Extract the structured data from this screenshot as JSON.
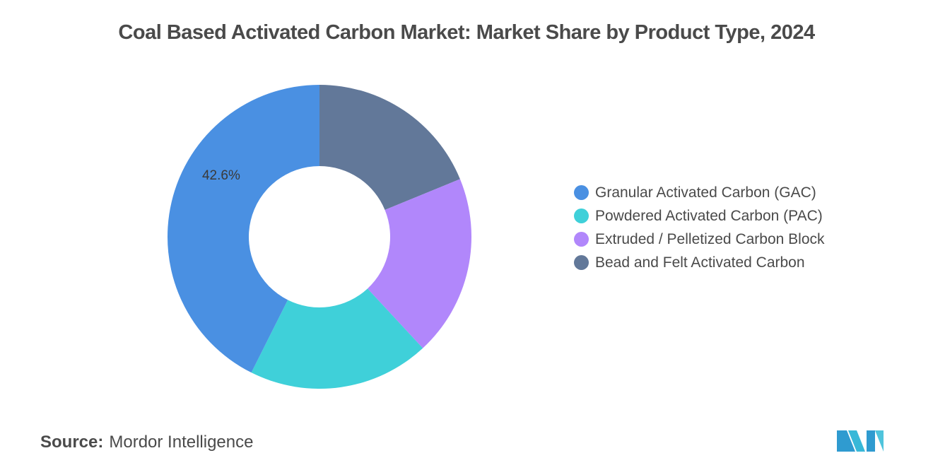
{
  "title": "Coal Based Activated Carbon Market: Market Share by Product Type, 2024",
  "chart_data": {
    "type": "pie",
    "style": "donut",
    "title": "Coal Based Activated Carbon Market: Market Share by Product Type, 2024",
    "series": [
      {
        "name": "Granular Activated Carbon (GAC)",
        "value": 42.6,
        "color": "#4a90e2",
        "label": "42.6%"
      },
      {
        "name": "Powdered Activated Carbon (PAC)",
        "value": 19.3,
        "color": "#3fd0d9",
        "label": ""
      },
      {
        "name": "Extruded / Pelletized Carbon Block",
        "value": 19.3,
        "color": "#b187fb",
        "label": ""
      },
      {
        "name": "Bead and Felt Activated Carbon",
        "value": 18.8,
        "color": "#627899",
        "label": ""
      }
    ],
    "legend_position": "right"
  },
  "source": {
    "label": "Source:",
    "text": "Mordor Intelligence"
  },
  "logo": {
    "icon": "mordor-intelligence-logo-icon",
    "color": "#3fa9d6"
  }
}
